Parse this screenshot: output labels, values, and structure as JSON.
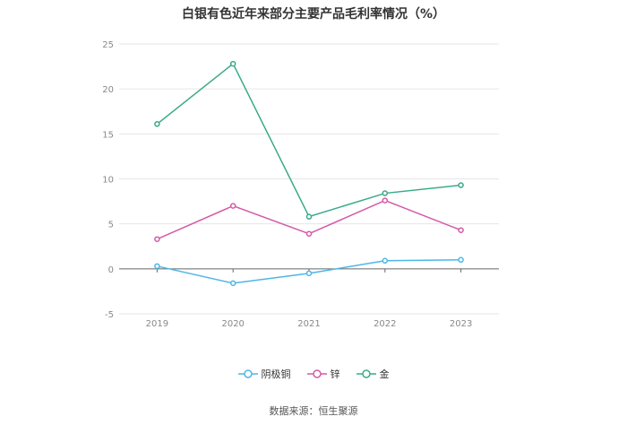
{
  "title": "白银有色近年来部分主要产品毛利率情况（%）",
  "source": "数据来源：恒生聚源",
  "chart_data": {
    "type": "line",
    "x": [
      "2019",
      "2020",
      "2021",
      "2022",
      "2023"
    ],
    "ylim": [
      -5,
      25
    ],
    "yticks": [
      -5,
      0,
      5,
      10,
      15,
      20,
      25
    ],
    "grid": true,
    "legend_position": "bottom",
    "series": [
      {
        "name": "阴极铜",
        "color": "#4db6e8",
        "values": [
          0.3,
          -1.6,
          -0.5,
          0.9,
          1.0
        ]
      },
      {
        "name": "锌",
        "color": "#d45aa7",
        "values": [
          3.3,
          7.0,
          3.9,
          7.6,
          4.3
        ]
      },
      {
        "name": "金",
        "color": "#3aaa8a",
        "values": [
          16.1,
          22.8,
          5.8,
          8.4,
          9.3
        ]
      }
    ]
  }
}
